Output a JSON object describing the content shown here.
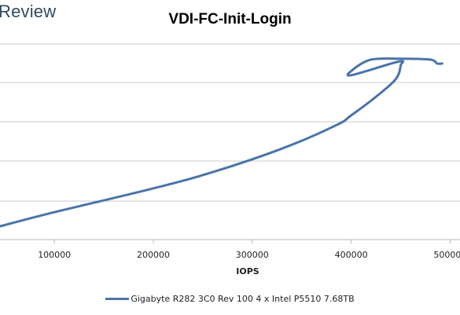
{
  "brand": {
    "text": "Review"
  },
  "chart_data": {
    "type": "line",
    "title": "VDI-FC-Init-Login",
    "xlabel": "IOPS",
    "ylabel": "",
    "xlim": [
      45000,
      510000
    ],
    "x_ticks": [
      100000,
      200000,
      300000,
      400000,
      500000
    ],
    "x_tick_labels": [
      "100000",
      "200000",
      "300000",
      "400000",
      "500000"
    ],
    "grid": "horizontal",
    "legend_position": "bottom",
    "series": [
      {
        "name": "Gigabyte R282 3C0 Rev 100 4 x Intel P5510 7.68TB",
        "color": "#4a74aa",
        "x": [
          45000,
          100000,
          200000,
          260000,
          330000,
          385000,
          400000,
          425000,
          445000,
          450000,
          448000,
          400000,
          402000,
          420000,
          450000,
          480000,
          487000,
          492000
        ],
        "y": [
          0.68,
          1.4,
          2.62,
          3.45,
          4.65,
          5.85,
          6.35,
          7.3,
          8.2,
          8.9,
          9.1,
          8.4,
          8.7,
          9.2,
          9.25,
          9.2,
          9.0,
          9.0
        ]
      }
    ]
  }
}
